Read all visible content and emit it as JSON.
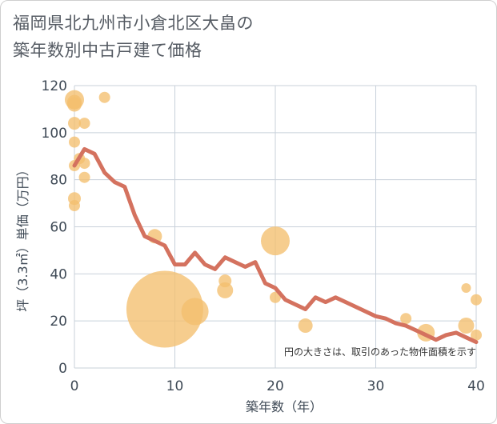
{
  "title_line1": "福岡県北九州市小倉北区大畠の",
  "title_line2": "築年数別中古戸建て価格",
  "chart_data": {
    "type": "scatter",
    "xlabel": "築年数（年）",
    "ylabel": "坪（3.3㎡）単価（万円）",
    "xlim": [
      0,
      40
    ],
    "ylim": [
      0,
      120
    ],
    "xticks": [
      "0",
      "10",
      "20",
      "30",
      "40"
    ],
    "yticks": [
      "0",
      "20",
      "40",
      "60",
      "80",
      "100",
      "120"
    ],
    "grid": true,
    "note": "円の大きさは、取引のあった物件面積を示す",
    "colors": {
      "bubble": "#f3bf6e",
      "line": "#d4725f",
      "grid": "#c8d0da"
    },
    "bubbles": [
      {
        "x": 0,
        "y": 114,
        "s": 12
      },
      {
        "x": 0,
        "y": 112,
        "s": 9
      },
      {
        "x": 0,
        "y": 113,
        "s": 9
      },
      {
        "x": 0,
        "y": 104,
        "s": 8
      },
      {
        "x": 0,
        "y": 96,
        "s": 7
      },
      {
        "x": 0,
        "y": 72,
        "s": 8
      },
      {
        "x": 0,
        "y": 69,
        "s": 7
      },
      {
        "x": 0,
        "y": 86,
        "s": 7
      },
      {
        "x": 0.5,
        "y": 89,
        "s": 7
      },
      {
        "x": 1,
        "y": 104,
        "s": 7
      },
      {
        "x": 1,
        "y": 87,
        "s": 7
      },
      {
        "x": 1,
        "y": 81,
        "s": 7
      },
      {
        "x": 3,
        "y": 115,
        "s": 7
      },
      {
        "x": 8,
        "y": 56,
        "s": 9
      },
      {
        "x": 9,
        "y": 25,
        "s": 48
      },
      {
        "x": 12,
        "y": 24,
        "s": 17
      },
      {
        "x": 15,
        "y": 37,
        "s": 8
      },
      {
        "x": 15,
        "y": 33,
        "s": 10
      },
      {
        "x": 20,
        "y": 54,
        "s": 18
      },
      {
        "x": 20,
        "y": 30,
        "s": 7
      },
      {
        "x": 23,
        "y": 18,
        "s": 9
      },
      {
        "x": 33,
        "y": 21,
        "s": 7
      },
      {
        "x": 35,
        "y": 15,
        "s": 11
      },
      {
        "x": 39,
        "y": 34,
        "s": 6
      },
      {
        "x": 39,
        "y": 18,
        "s": 10
      },
      {
        "x": 40,
        "y": 29,
        "s": 7
      },
      {
        "x": 40,
        "y": 14,
        "s": 7
      }
    ],
    "trend": {
      "x": [
        0,
        1,
        2,
        3,
        4,
        5,
        6,
        7,
        8,
        9,
        10,
        11,
        12,
        13,
        14,
        15,
        16,
        17,
        18,
        19,
        20,
        21,
        22,
        23,
        24,
        25,
        26,
        27,
        28,
        29,
        30,
        31,
        32,
        33,
        34,
        35,
        36,
        37,
        38,
        39,
        40
      ],
      "y": [
        86,
        93,
        91,
        83,
        79,
        77,
        65,
        56,
        54,
        52,
        44,
        44,
        49,
        44,
        42,
        47,
        45,
        43,
        45,
        36,
        34,
        29,
        27,
        25,
        30,
        28,
        30,
        28,
        26,
        24,
        22,
        21,
        19,
        18,
        16,
        14,
        12,
        14,
        15,
        13,
        11
      ]
    }
  }
}
